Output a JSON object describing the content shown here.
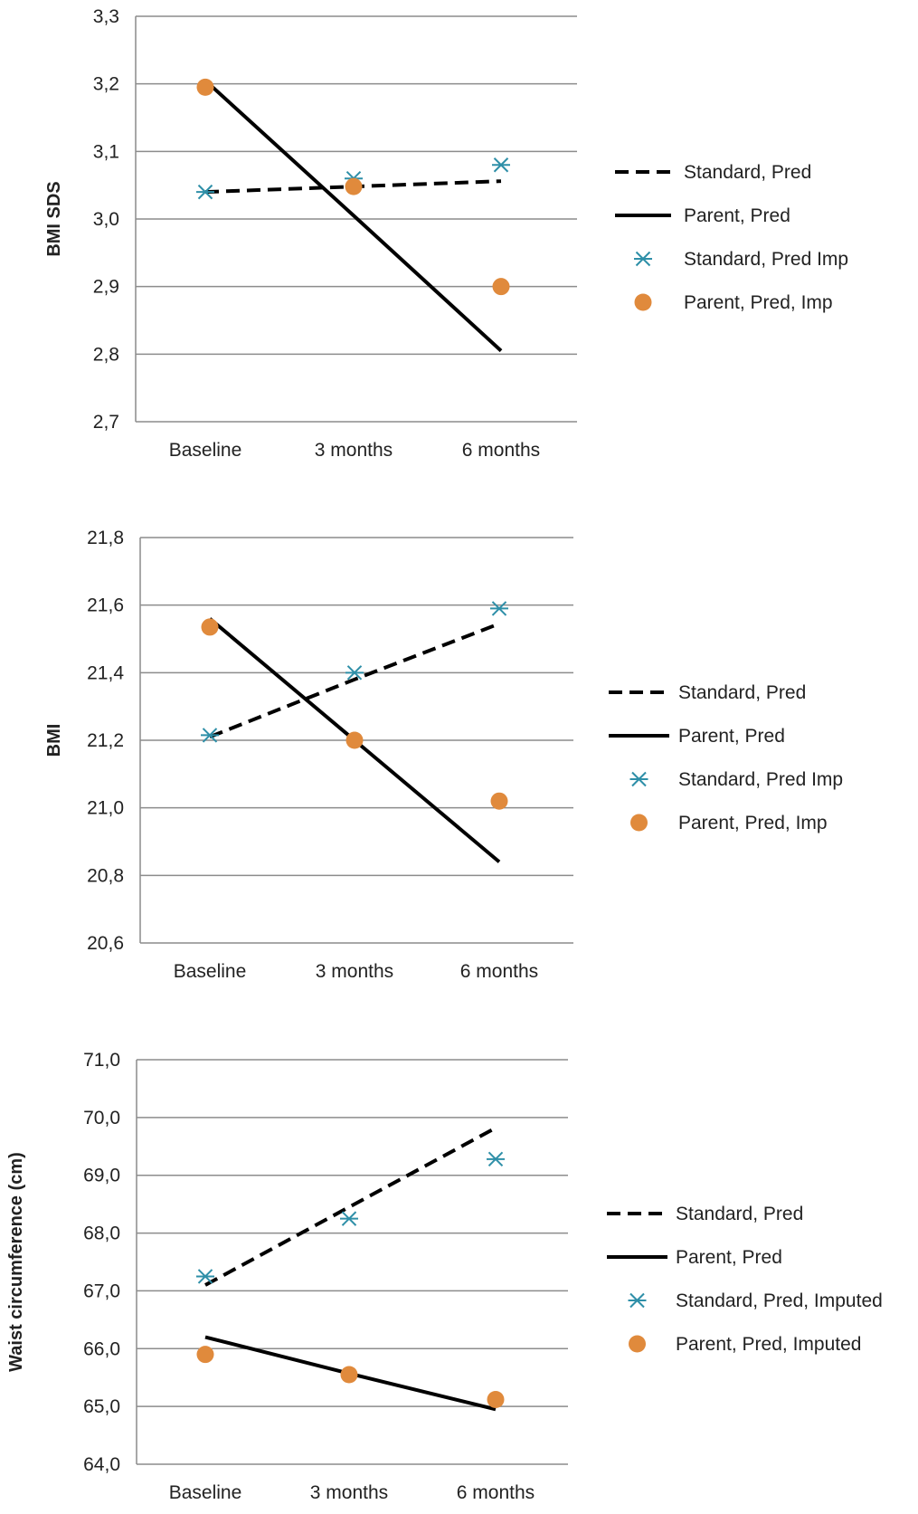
{
  "colors": {
    "standard_marker": "#2e8fa8",
    "parent_marker": "#e08a3c",
    "line": "#000000",
    "grid": "#8c8c8c"
  },
  "chart_data": [
    {
      "type": "line",
      "title": "",
      "xlabel": "",
      "ylabel": "BMI SDS",
      "categories": [
        "Baseline",
        "3 months",
        "6 months"
      ],
      "ylim": [
        2.7,
        3.3
      ],
      "y_ticks": [
        "2,7",
        "2,8",
        "2,9",
        "3,0",
        "3,1",
        "3,2",
        "3,3"
      ],
      "grid": true,
      "legend_position": "right",
      "series": [
        {
          "name": "Standard, Pred",
          "style": "dashed-line",
          "values": [
            3.04,
            3.048,
            3.056
          ]
        },
        {
          "name": "Parent, Pred",
          "style": "solid-line",
          "values": [
            3.205,
            3.005,
            2.805
          ]
        },
        {
          "name": "Standard, Pred Imp",
          "style": "asterisk-marker",
          "values": [
            3.04,
            3.06,
            3.08
          ]
        },
        {
          "name": "Parent, Pred, Imp",
          "style": "circle-marker",
          "values": [
            3.195,
            3.048,
            2.9
          ]
        }
      ]
    },
    {
      "type": "line",
      "title": "",
      "xlabel": "",
      "ylabel": "BMI",
      "categories": [
        "Baseline",
        "3 months",
        "6 months"
      ],
      "ylim": [
        20.6,
        21.8
      ],
      "y_ticks": [
        "20,6",
        "20,8",
        "21,0",
        "21,2",
        "21,4",
        "21,6",
        "21,8"
      ],
      "grid": true,
      "legend_position": "right",
      "series": [
        {
          "name": "Standard, Pred",
          "style": "dashed-line",
          "values": [
            21.21,
            21.38,
            21.545
          ]
        },
        {
          "name": "Parent, Pred",
          "style": "solid-line",
          "values": [
            21.56,
            21.2,
            20.84
          ]
        },
        {
          "name": "Standard, Pred Imp",
          "style": "asterisk-marker",
          "values": [
            21.215,
            21.4,
            21.59
          ]
        },
        {
          "name": "Parent, Pred, Imp",
          "style": "circle-marker",
          "values": [
            21.535,
            21.2,
            21.02
          ]
        }
      ]
    },
    {
      "type": "line",
      "title": "",
      "xlabel": "",
      "ylabel": "Waist circumference (cm)",
      "categories": [
        "Baseline",
        "3 months",
        "6 months"
      ],
      "ylim": [
        64.0,
        71.0
      ],
      "y_ticks": [
        "64,0",
        "65,0",
        "66,0",
        "67,0",
        "68,0",
        "69,0",
        "70,0",
        "71,0"
      ],
      "grid": true,
      "legend_position": "right",
      "series": [
        {
          "name": "Standard, Pred",
          "style": "dashed-line",
          "values": [
            67.1,
            68.45,
            69.82
          ]
        },
        {
          "name": "Parent, Pred",
          "style": "solid-line",
          "values": [
            66.2,
            65.57,
            64.95
          ]
        },
        {
          "name": "Standard, Pred, Imputed",
          "style": "asterisk-marker",
          "values": [
            67.25,
            68.25,
            69.28
          ]
        },
        {
          "name": "Parent, Pred, Imputed",
          "style": "circle-marker",
          "values": [
            65.9,
            65.55,
            65.12
          ]
        }
      ]
    }
  ]
}
